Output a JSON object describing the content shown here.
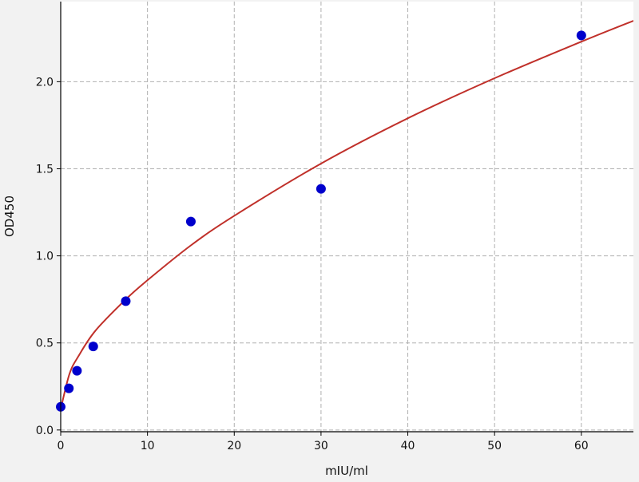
{
  "chart_data": {
    "type": "scatter",
    "title": "",
    "xlabel": "mIU/ml",
    "ylabel": "OD450",
    "xlim": [
      0,
      66
    ],
    "ylim": [
      -0.01,
      2.46
    ],
    "x_ticks": [
      0,
      10,
      20,
      30,
      40,
      50,
      60
    ],
    "x_tick_labels": [
      "0",
      "10",
      "20",
      "30",
      "40",
      "50",
      "60"
    ],
    "y_ticks": [
      0.0,
      0.5,
      1.0,
      1.5,
      2.0
    ],
    "y_tick_labels": [
      "0.0",
      "0.5",
      "1.0",
      "1.5",
      "2.0"
    ],
    "grid": true,
    "points": {
      "x": [
        0,
        0.94,
        1.875,
        3.75,
        7.5,
        15,
        30,
        60
      ],
      "y": [
        0.133,
        0.239,
        0.34,
        0.48,
        0.74,
        1.197,
        1.385,
        2.266
      ],
      "color": "#0000cc"
    },
    "fit_curve": {
      "x": [
        0,
        1,
        2,
        4,
        7.5,
        10,
        15,
        20,
        30,
        40,
        50,
        60,
        66
      ],
      "y": [
        0.12,
        0.32,
        0.42,
        0.57,
        0.75,
        0.86,
        1.06,
        1.23,
        1.53,
        1.79,
        2.02,
        2.23,
        2.35
      ],
      "color": "#c0302a"
    },
    "background_color": "#f2f2f2",
    "plot_background_color": "#ffffff"
  }
}
